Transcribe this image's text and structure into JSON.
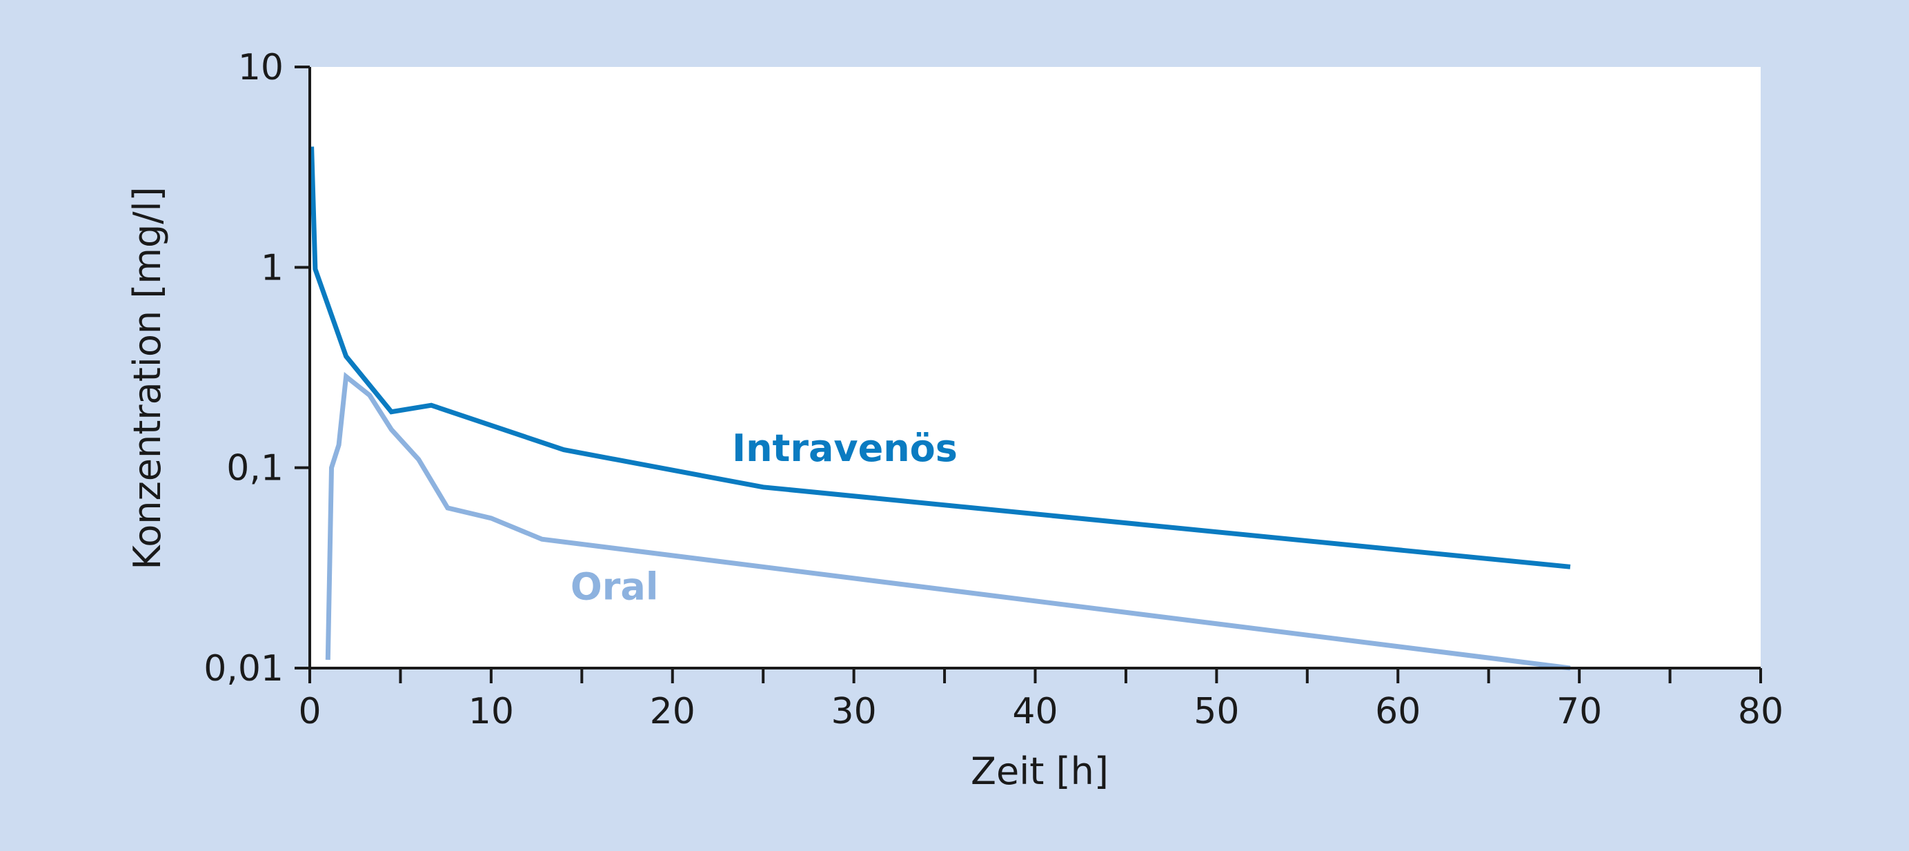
{
  "chart_data": {
    "type": "line",
    "title": "",
    "xlabel": "Zeit [h]",
    "ylabel": "Konzentration [mg/l]",
    "xlim": [
      0,
      80
    ],
    "ylim": [
      0.01,
      10
    ],
    "yscale": "log",
    "grid": false,
    "x_ticks": [
      0,
      10,
      20,
      30,
      40,
      50,
      60,
      70,
      80
    ],
    "x_tick_labels": [
      "0",
      "10",
      "20",
      "30",
      "40",
      "50",
      "60",
      "70",
      "80"
    ],
    "x_minor_ticks": [
      5,
      15,
      25,
      35,
      45,
      55,
      65,
      75
    ],
    "y_ticks": [
      0.01,
      0.1,
      1,
      10
    ],
    "y_tick_labels": [
      "0,01",
      "0,1",
      "1",
      "10"
    ],
    "series": [
      {
        "name": "Intravenös",
        "color": "#0a7bc1",
        "x": [
          0.1,
          0.3,
          2.0,
          4.5,
          6.7,
          14.0,
          25.0,
          69.5
        ],
        "y": [
          4.0,
          0.98,
          0.36,
          0.19,
          0.205,
          0.123,
          0.08,
          0.032
        ]
      },
      {
        "name": "Oral",
        "color": "#8db2df",
        "x": [
          1.0,
          1.2,
          1.6,
          2.0,
          3.3,
          4.5,
          6.0,
          7.6,
          10.0,
          12.8,
          69.5
        ],
        "y": [
          0.011,
          0.1,
          0.13,
          0.285,
          0.23,
          0.155,
          0.11,
          0.063,
          0.056,
          0.044,
          0.01
        ]
      }
    ],
    "series_labels": [
      {
        "text": "Intravenös",
        "x": 29.5,
        "y": 0.108
      },
      {
        "text": "Oral",
        "x": 16.8,
        "y": 0.022
      }
    ]
  }
}
